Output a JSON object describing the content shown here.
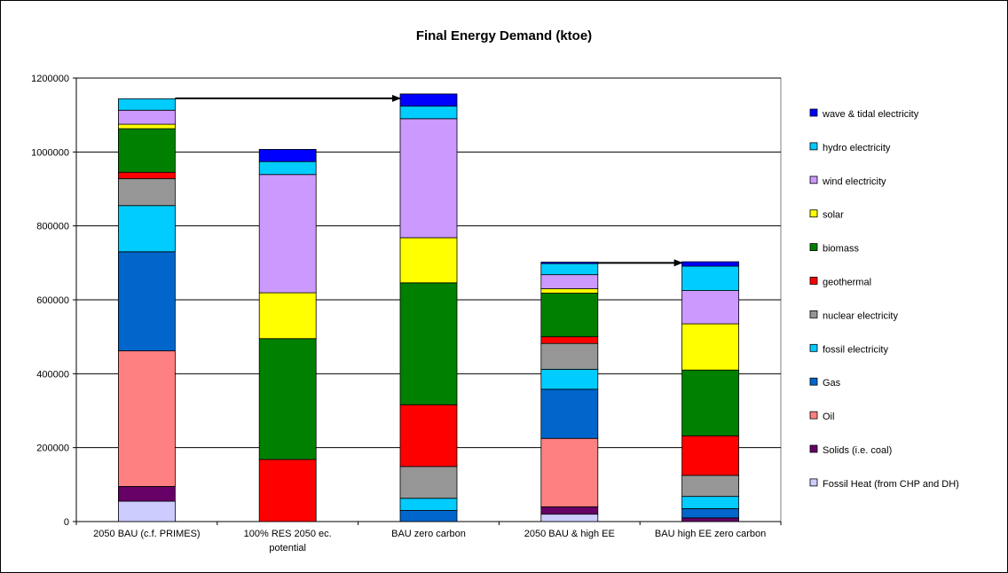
{
  "chart_data": {
    "type": "bar",
    "stacked": true,
    "title": "Final Energy Demand (ktoe)",
    "xlabel": "",
    "ylabel": "",
    "ylim": [
      0,
      1200000
    ],
    "yticks": [
      "0",
      "200000",
      "400000",
      "600000",
      "800000",
      "1000000",
      "1200000"
    ],
    "grid": true,
    "legend_position": "right",
    "categories": [
      [
        "2050 BAU (c.f. PRIMES)"
      ],
      [
        "100% RES 2050 ec.",
        "potential"
      ],
      [
        "BAU zero carbon"
      ],
      [
        "2050 BAU & high EE"
      ],
      [
        "BAU high EE zero carbon"
      ]
    ],
    "series": [
      {
        "name": "Fossil Heat (from CHP and DH)",
        "color": "#CCCCFF",
        "values": [
          55000,
          0,
          0,
          20000,
          0
        ]
      },
      {
        "name": "Solids (i.e. coal)",
        "color": "#660066",
        "values": [
          40000,
          0,
          0,
          20000,
          10000
        ]
      },
      {
        "name": "Oil",
        "color": "#FF8080",
        "values": [
          367000,
          0,
          0,
          185000,
          0
        ]
      },
      {
        "name": "Gas",
        "color": "#0066CC",
        "values": [
          268000,
          0,
          30000,
          133000,
          25000
        ]
      },
      {
        "name": "fossil electricity",
        "color": "#00CCFF",
        "values": [
          125000,
          0,
          33000,
          54000,
          33000
        ]
      },
      {
        "name": "nuclear electricity",
        "color": "#969696",
        "values": [
          73000,
          0,
          86000,
          70000,
          57000
        ]
      },
      {
        "name": "geothermal",
        "color": "#FF0000",
        "values": [
          17000,
          168000,
          167000,
          18000,
          107000
        ]
      },
      {
        "name": "biomass",
        "color": "#008000",
        "values": [
          118000,
          327000,
          330000,
          118000,
          178000
        ]
      },
      {
        "name": "solar",
        "color": "#FFFF00",
        "values": [
          12000,
          124000,
          122000,
          12000,
          125000
        ]
      },
      {
        "name": "wind  electricity",
        "color": "#CC99FF",
        "values": [
          38000,
          320000,
          322000,
          38000,
          90000
        ]
      },
      {
        "name": "hydro  electricity",
        "color": "#00CCFF",
        "values": [
          31000,
          35000,
          34000,
          30000,
          66000
        ]
      },
      {
        "name": "wave & tidal electricity",
        "color": "#0000FF",
        "values": [
          0,
          33000,
          33000,
          4000,
          12000
        ]
      }
    ],
    "annotations": [
      {
        "type": "arrow",
        "from_category": 0,
        "to_category": 2,
        "value": 1145000
      },
      {
        "type": "arrow",
        "from_category": 3,
        "to_category": 4,
        "value": 700000
      }
    ]
  }
}
